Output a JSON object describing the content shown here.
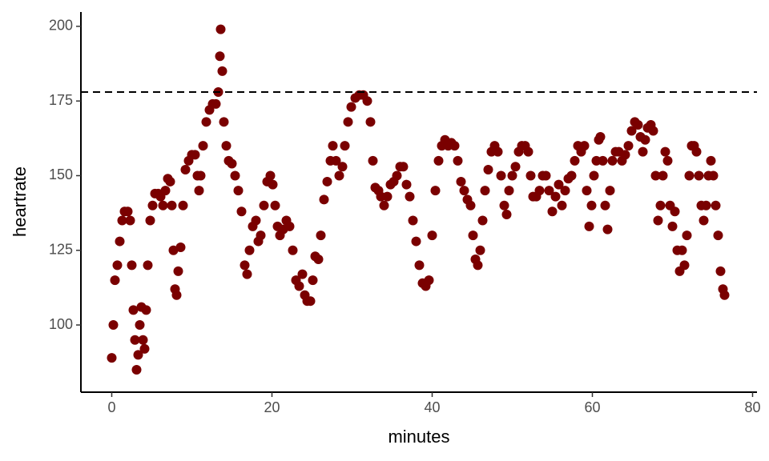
{
  "chart_data": {
    "type": "scatter",
    "x_label": "minutes",
    "y_label": "heartrate",
    "color": "#7a0000",
    "hline": 178,
    "hline_style": "dashed",
    "xlim": [
      -3.85,
      80.55
    ],
    "ylim": [
      77.5,
      204.8
    ],
    "xticks": [
      0,
      20,
      40,
      60,
      80
    ],
    "yticks": [
      100,
      125,
      150,
      175,
      200
    ],
    "x": [
      0,
      0.2,
      0.4,
      0.7,
      1,
      1.3,
      1.6,
      2,
      2.3,
      2.5,
      2.7,
      2.9,
      3.1,
      3.3,
      3.5,
      3.7,
      3.9,
      4.1,
      4.3,
      4.5,
      4.8,
      5.1,
      5.4,
      5.8,
      6.1,
      6.4,
      6.7,
      7,
      7.3,
      7.5,
      7.7,
      7.9,
      8.1,
      8.3,
      8.6,
      8.9,
      9.2,
      9.6,
      10,
      10.4,
      10.7,
      10.9,
      11.1,
      11.4,
      11.8,
      12.2,
      12.6,
      13,
      13.3,
      13.5,
      13.6,
      13.8,
      14,
      14.3,
      14.6,
      15,
      15.4,
      15.8,
      16.2,
      16.6,
      16.9,
      17.2,
      17.6,
      18,
      18.3,
      18.6,
      19,
      19.4,
      19.8,
      20.1,
      20.4,
      20.7,
      21,
      21.4,
      21.8,
      22.2,
      22.6,
      23,
      23.4,
      23.8,
      24.1,
      24.4,
      24.8,
      25.1,
      25.4,
      25.8,
      26.1,
      26.5,
      26.9,
      27.3,
      27.6,
      28,
      28.4,
      28.8,
      29.1,
      29.5,
      29.9,
      30.4,
      30.9,
      31.4,
      31.9,
      32.3,
      32.6,
      32.9,
      33.3,
      33.6,
      34,
      34.4,
      34.8,
      35.2,
      35.6,
      36,
      36.4,
      36.8,
      37.2,
      37.6,
      38,
      38.4,
      38.8,
      39.2,
      39.6,
      40,
      40.4,
      40.8,
      41.2,
      41.6,
      42,
      42.4,
      42.8,
      43.2,
      43.6,
      44,
      44.4,
      44.8,
      45.1,
      45.4,
      45.7,
      46,
      46.3,
      46.6,
      47,
      47.4,
      47.8,
      48.2,
      48.6,
      49,
      49.3,
      49.6,
      50,
      50.4,
      50.8,
      51.2,
      51.6,
      52,
      52.3,
      52.6,
      53,
      53.4,
      53.8,
      54.2,
      54.6,
      55,
      55.4,
      55.8,
      56.2,
      56.6,
      57,
      57.4,
      57.8,
      58.2,
      58.6,
      59,
      59.3,
      59.6,
      59.9,
      60.2,
      60.5,
      60.8,
      61,
      61.3,
      61.6,
      61.9,
      62.2,
      62.5,
      62.9,
      63.3,
      63.7,
      64.1,
      64.5,
      64.9,
      65.3,
      65.7,
      66,
      66.3,
      66.6,
      66.9,
      67.3,
      67.6,
      67.9,
      68.2,
      68.5,
      68.8,
      69.1,
      69.4,
      69.7,
      70,
      70.3,
      70.6,
      70.9,
      71.2,
      71.5,
      71.8,
      72.1,
      72.4,
      72.7,
      73,
      73.3,
      73.6,
      73.9,
      74.2,
      74.5,
      74.8,
      75.1,
      75.4,
      75.7,
      76,
      76.3,
      76.5
    ],
    "values": [
      89,
      100,
      115,
      120,
      128,
      135,
      138,
      138,
      135,
      120,
      105,
      95,
      85,
      90,
      100,
      106,
      95,
      92,
      105,
      120,
      135,
      140,
      144,
      144,
      143,
      140,
      145,
      149,
      148,
      140,
      125,
      112,
      110,
      118,
      126,
      140,
      152,
      155,
      157,
      157,
      150,
      145,
      150,
      160,
      168,
      172,
      174,
      174,
      178,
      190,
      199,
      185,
      168,
      160,
      155,
      154,
      150,
      145,
      138,
      120,
      117,
      125,
      133,
      135,
      128,
      130,
      140,
      148,
      150,
      147,
      140,
      133,
      130,
      132,
      135,
      133,
      125,
      115,
      113,
      117,
      110,
      108,
      108,
      115,
      123,
      122,
      130,
      142,
      148,
      155,
      160,
      155,
      150,
      153,
      160,
      168,
      173,
      176,
      177,
      177,
      175,
      168,
      155,
      146,
      145,
      143,
      140,
      143,
      147,
      148,
      150,
      153,
      153,
      147,
      143,
      135,
      128,
      120,
      114,
      113,
      115,
      130,
      145,
      155,
      160,
      162,
      160,
      161,
      160,
      155,
      148,
      145,
      142,
      140,
      130,
      122,
      120,
      125,
      135,
      145,
      152,
      158,
      160,
      158,
      150,
      140,
      137,
      145,
      150,
      153,
      158,
      160,
      160,
      158,
      150,
      143,
      143,
      145,
      150,
      150,
      145,
      138,
      143,
      147,
      140,
      145,
      149,
      150,
      155,
      160,
      158,
      160,
      145,
      133,
      140,
      150,
      155,
      162,
      163,
      155,
      140,
      132,
      145,
      155,
      158,
      158,
      155,
      157,
      160,
      165,
      168,
      167,
      163,
      158,
      162,
      166,
      167,
      165,
      150,
      135,
      140,
      150,
      158,
      155,
      140,
      133,
      138,
      125,
      118,
      125,
      120,
      130,
      150,
      160,
      160,
      158,
      150,
      140,
      135,
      140,
      150,
      155,
      150,
      140,
      130,
      118,
      112,
      110
    ]
  }
}
